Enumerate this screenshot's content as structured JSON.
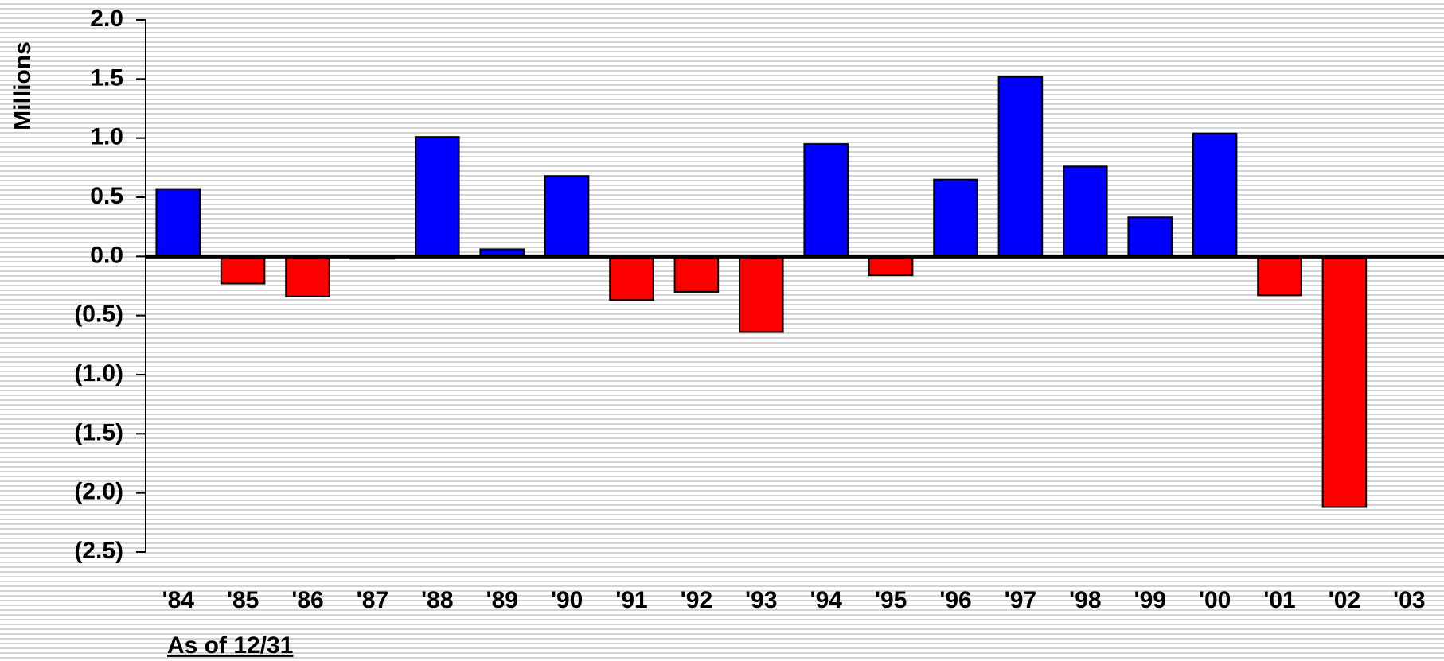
{
  "chart_data": {
    "type": "bar",
    "y_label": "Millions",
    "x_note": "As of 12/31",
    "categories": [
      "'84",
      "'85",
      "'86",
      "'87",
      "'88",
      "'89",
      "'90",
      "'91",
      "'92",
      "'93",
      "'94",
      "'95",
      "'96",
      "'97",
      "'98",
      "'99",
      "'00",
      "'01",
      "'02",
      "'03"
    ],
    "values": [
      0.57,
      -0.23,
      -0.34,
      -0.02,
      1.01,
      0.06,
      0.68,
      -0.37,
      -0.3,
      -0.64,
      0.95,
      -0.16,
      0.65,
      1.52,
      0.76,
      0.33,
      1.04,
      -0.33,
      -2.12,
      null
    ],
    "positive_color": "#0000ff",
    "negative_color": "#ff0000",
    "ylim": [
      -2.5,
      2.0
    ],
    "yticks": [
      {
        "value": 2.0,
        "label": "2.0"
      },
      {
        "value": 1.5,
        "label": "1.5"
      },
      {
        "value": 1.0,
        "label": "1.0"
      },
      {
        "value": 0.5,
        "label": "0.5"
      },
      {
        "value": 0,
        "label": "0.0"
      },
      {
        "value": -0.5,
        "label": "(0.5)"
      },
      {
        "value": -1.0,
        "label": "(1.0)"
      },
      {
        "value": -1.5,
        "label": "(1.5)"
      },
      {
        "value": -2.0,
        "label": "(2.0)"
      },
      {
        "value": -2.5,
        "label": "(2.5)"
      }
    ],
    "grid": false
  }
}
